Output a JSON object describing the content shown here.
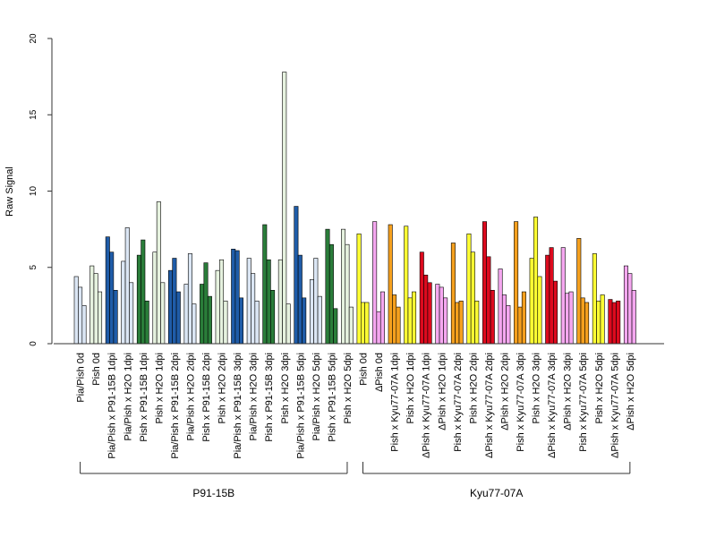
{
  "chart_data": {
    "type": "bar",
    "ylabel": "Raw Signal",
    "xlabel": "",
    "ylim": [
      0,
      20
    ],
    "yticks": [
      "0",
      "5",
      "10",
      "15",
      "20"
    ],
    "grid": false,
    "replicates_per_category": 3,
    "categories": [
      "Pia/Pish 0d",
      "Pish 0d",
      "Pia/Pish x P91-15B 1dpi",
      "Pia/Pish x H2O 1dpi",
      "Pish x P91-15B 1dpi",
      "Pish x H2O 1dpi",
      "Pia/Pish x P91-15B 2dpi",
      "Pia/Pish x H2O 2dpi",
      "Pish x P91-15B 2dpi",
      "Pish x H2O 2dpi",
      "Pia/Pish x P91-15B 3dpi",
      "Pia/Pish x H2O 3dpi",
      "Pish x P91-15B 3dpi",
      "Pish x H2O 3dpi",
      "Pia/Pish x P91-15B 5dpi",
      "Pia/Pish x H2O 5dpi",
      "Pish x P91-15B 5dpi",
      "Pish x H2O 5dpi",
      "Pish 0d",
      "ΔPish 0d",
      "Pish x Kyu77-07A 1dpi",
      "Pish x H2O 1dpi",
      "ΔPish x Kyu77-07A 1dpi",
      "ΔPish x H2O 1dpi",
      "Pish x Kyu77-07A 2dpi",
      "Pish x H2O 2dpi",
      "ΔPish x Kyu77-07A 2dpi",
      "ΔPish x H2O 2dpi",
      "Pish x Kyu77-07A 3dpi",
      "Pish x H2O 3dpi",
      "ΔPish x Kyu77-07A 3dpi",
      "ΔPish x H2O 3dpi",
      "Pish x Kyu77-07A 5dpi",
      "Pish x H2O 5dpi",
      "ΔPish x Kyu77-07A 5dpi",
      "ΔPish x H2O 5dpi"
    ],
    "colors": [
      "#dbe6f4",
      "#e6f2df",
      "#1f5ca8",
      "#dbe6f4",
      "#2a7d3a",
      "#e6f2df",
      "#1f5ca8",
      "#dbe6f4",
      "#2a7d3a",
      "#e6f2df",
      "#1f5ca8",
      "#dbe6f4",
      "#2a7d3a",
      "#e6f2df",
      "#1f5ca8",
      "#dbe6f4",
      "#2a7d3a",
      "#e6f2df",
      "#ffff33",
      "#f5a7f0",
      "#f5a01e",
      "#ffff33",
      "#dd0a1e",
      "#f5a7f0",
      "#f5a01e",
      "#ffff33",
      "#dd0a1e",
      "#f5a7f0",
      "#f5a01e",
      "#ffff33",
      "#dd0a1e",
      "#f5a7f0",
      "#f5a01e",
      "#ffff33",
      "#dd0a1e",
      "#f5a7f0"
    ],
    "values": [
      [
        4.4,
        3.7,
        2.5
      ],
      [
        5.1,
        4.6,
        3.4
      ],
      [
        7.0,
        6.0,
        3.5
      ],
      [
        5.4,
        7.6,
        4.0
      ],
      [
        5.8,
        6.8,
        2.8
      ],
      [
        6.0,
        9.3,
        4.0
      ],
      [
        4.8,
        5.6,
        3.4
      ],
      [
        3.9,
        5.9,
        2.6
      ],
      [
        3.9,
        5.3,
        3.1
      ],
      [
        4.8,
        5.5,
        2.8
      ],
      [
        6.2,
        6.1,
        3.0
      ],
      [
        5.6,
        4.6,
        2.8
      ],
      [
        7.8,
        5.5,
        3.5
      ],
      [
        5.5,
        17.8,
        2.6
      ],
      [
        9.0,
        5.8,
        3.0
      ],
      [
        4.2,
        5.6,
        3.1
      ],
      [
        7.5,
        6.5,
        2.3
      ],
      [
        7.5,
        6.5,
        2.4
      ],
      [
        7.2,
        2.7,
        2.7
      ],
      [
        8.0,
        2.1,
        3.4
      ],
      [
        7.8,
        3.2,
        2.4
      ],
      [
        7.7,
        3.0,
        3.4
      ],
      [
        6.0,
        4.5,
        4.0
      ],
      [
        3.9,
        3.7,
        3.0
      ],
      [
        6.6,
        2.7,
        2.8
      ],
      [
        7.2,
        6.0,
        2.8
      ],
      [
        8.0,
        5.7,
        3.5
      ],
      [
        4.9,
        3.2,
        2.5
      ],
      [
        8.0,
        2.4,
        3.4
      ],
      [
        5.6,
        8.3,
        4.4
      ],
      [
        5.8,
        6.3,
        4.1
      ],
      [
        6.3,
        3.3,
        3.4
      ],
      [
        6.9,
        3.0,
        2.7
      ],
      [
        5.9,
        2.8,
        3.2
      ],
      [
        2.9,
        2.7,
        2.8
      ],
      [
        5.1,
        4.6,
        3.5
      ]
    ],
    "groups": [
      {
        "label": "P91-15B",
        "from": 0,
        "to": 17
      },
      {
        "label": "Kyu77-07A",
        "from": 18,
        "to": 35
      }
    ]
  }
}
